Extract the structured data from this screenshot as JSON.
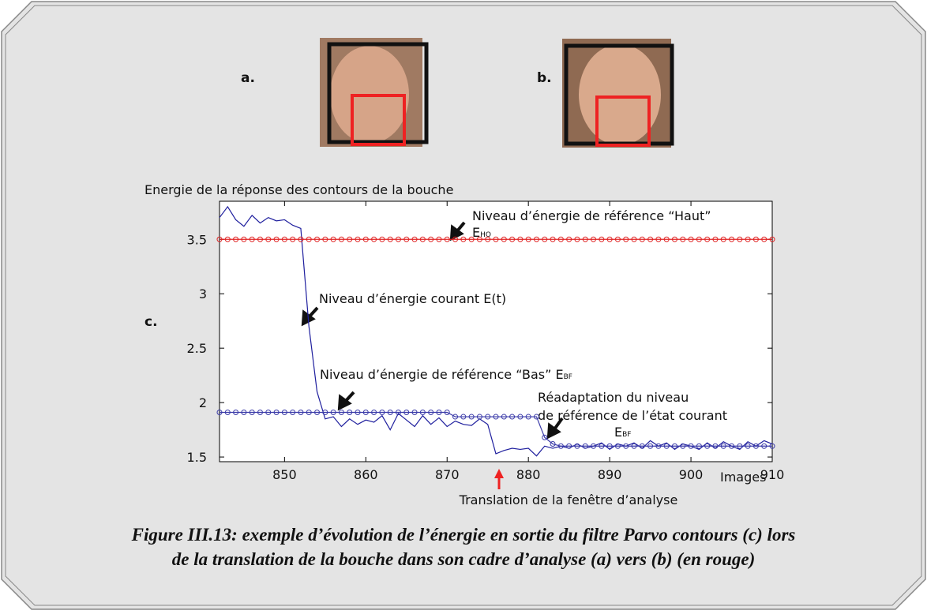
{
  "panel_labels": {
    "a": "a.",
    "b": "b.",
    "c": "c."
  },
  "caption": [
    "Figure III.13: exemple d’évolution de l’énergie en sortie du filtre Parvo contours (c) lors",
    "de la translation de la bouche dans son cadre d’analyse (a) vers (b) (en rouge)"
  ],
  "chart_data": {
    "type": "line",
    "ylabel": "Energie de la réponse des contours de la bouche",
    "xlabel": "Images",
    "x": [
      842,
      843,
      844,
      845,
      846,
      847,
      848,
      849,
      850,
      851,
      852,
      853,
      854,
      855,
      856,
      857,
      858,
      859,
      860,
      861,
      862,
      863,
      864,
      865,
      866,
      867,
      868,
      869,
      870,
      871,
      872,
      873,
      874,
      875,
      876,
      877,
      878,
      879,
      880,
      881,
      882,
      883,
      884,
      885,
      886,
      887,
      888,
      889,
      890,
      891,
      892,
      893,
      894,
      895,
      896,
      897,
      898,
      899,
      900,
      901,
      902,
      903,
      904,
      905,
      906,
      907,
      908,
      909,
      910
    ],
    "series": [
      {
        "color": "#1f1f9e",
        "marker": "none",
        "values": [
          3.7,
          3.8,
          3.68,
          3.62,
          3.72,
          3.65,
          3.7,
          3.67,
          3.68,
          3.63,
          3.6,
          2.7,
          2.1,
          1.85,
          1.87,
          1.78,
          1.85,
          1.8,
          1.84,
          1.82,
          1.88,
          1.75,
          1.9,
          1.84,
          1.78,
          1.88,
          1.8,
          1.86,
          1.78,
          1.83,
          1.8,
          1.79,
          1.85,
          1.8,
          1.53,
          1.56,
          1.58,
          1.57,
          1.58,
          1.51,
          1.6,
          1.58,
          1.6,
          1.58,
          1.62,
          1.58,
          1.6,
          1.63,
          1.57,
          1.62,
          1.6,
          1.63,
          1.58,
          1.65,
          1.6,
          1.63,
          1.57,
          1.62,
          1.6,
          1.57,
          1.63,
          1.58,
          1.64,
          1.6,
          1.57,
          1.64,
          1.6,
          1.65,
          1.62
        ]
      },
      {
        "color": "#e02020",
        "marker": "circle",
        "values": [
          3.5,
          3.5,
          3.5,
          3.5,
          3.5,
          3.5,
          3.5,
          3.5,
          3.5,
          3.5,
          3.5,
          3.5,
          3.5,
          3.5,
          3.5,
          3.5,
          3.5,
          3.5,
          3.5,
          3.5,
          3.5,
          3.5,
          3.5,
          3.5,
          3.5,
          3.5,
          3.5,
          3.5,
          3.5,
          3.5,
          3.5,
          3.5,
          3.5,
          3.5,
          3.5,
          3.5,
          3.5,
          3.5,
          3.5,
          3.5,
          3.5,
          3.5,
          3.5,
          3.5,
          3.5,
          3.5,
          3.5,
          3.5,
          3.5,
          3.5,
          3.5,
          3.5,
          3.5,
          3.5,
          3.5,
          3.5,
          3.5,
          3.5,
          3.5,
          3.5,
          3.5,
          3.5,
          3.5,
          3.5,
          3.5,
          3.5,
          3.5,
          3.5,
          3.5
        ]
      },
      {
        "color": "#3a3aa8",
        "marker": "circle",
        "values": [
          1.91,
          1.91,
          1.91,
          1.91,
          1.91,
          1.91,
          1.91,
          1.91,
          1.91,
          1.91,
          1.91,
          1.91,
          1.91,
          1.91,
          1.91,
          1.91,
          1.91,
          1.91,
          1.91,
          1.91,
          1.91,
          1.91,
          1.91,
          1.91,
          1.91,
          1.91,
          1.91,
          1.91,
          1.91,
          1.87,
          1.87,
          1.87,
          1.87,
          1.87,
          1.87,
          1.87,
          1.87,
          1.87,
          1.87,
          1.87,
          1.68,
          1.62,
          1.6,
          1.6,
          1.6,
          1.6,
          1.6,
          1.6,
          1.6,
          1.6,
          1.6,
          1.6,
          1.6,
          1.6,
          1.6,
          1.6,
          1.6,
          1.6,
          1.6,
          1.6,
          1.6,
          1.6,
          1.6,
          1.6,
          1.6,
          1.6,
          1.6,
          1.6,
          1.6
        ]
      }
    ],
    "xlim": [
      842,
      910
    ],
    "ylim": [
      1.457,
      3.85
    ],
    "xticks": [
      850,
      860,
      870,
      880,
      890,
      900,
      910
    ],
    "yticks": [
      1.5,
      2,
      2.5,
      3,
      3.5
    ],
    "annotations": [
      "Niveau d’énergie de référence “Haut”",
      "E",
      "HO",
      "Niveau d’énergie courant E(t)",
      "Niveau d’énergie de référence “Bas” E",
      "BF",
      "Réadaptation du niveau",
      "de référence de l’état courant",
      "E",
      "BF",
      "Translation de la fenêtre d’analyse"
    ]
  }
}
